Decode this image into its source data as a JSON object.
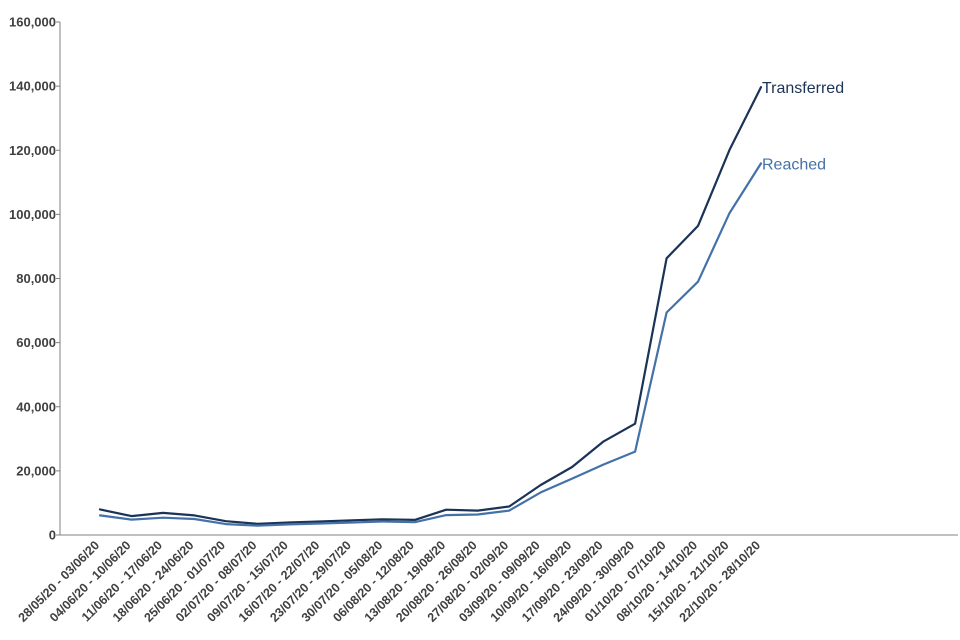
{
  "chart_data": {
    "type": "line",
    "categories": [
      "28/05/20 - 03/06/20",
      "04/06/20 - 10/06/20",
      "11/06/20 - 17/06/20",
      "18/06/20 - 24/06/20",
      "25/06/20 - 01/07/20",
      "02/07/20 - 08/07/20",
      "09/07/20 - 15/07/20",
      "16/07/20 - 22/07/20",
      "23/07/20 - 29/07/20",
      "30/07/20 - 05/08/20",
      "06/08/20 - 12/08/20",
      "13/08/20 - 19/08/20",
      "20/08/20 - 26/08/20",
      "27/08/20 - 02/09/20",
      "03/09/20 - 09/09/20",
      "10/09/20 - 16/09/20",
      "17/09/20 - 23/09/20",
      "24/09/20 - 30/09/20",
      "01/10/20 - 07/10/20",
      "08/10/20 - 14/10/20",
      "15/10/20 - 21/10/20",
      "22/10/20 - 28/10/20"
    ],
    "series": [
      {
        "name": "Transferred",
        "color": "#1a3356",
        "values": [
          8000,
          5900,
          6900,
          6100,
          4300,
          3500,
          3900,
          4200,
          4600,
          4900,
          4700,
          7900,
          7600,
          8900,
          15600,
          21200,
          29200,
          34700,
          86300,
          96400,
          120100,
          139700
        ]
      },
      {
        "name": "Reached",
        "color": "#4472a8",
        "values": [
          6100,
          4800,
          5400,
          5000,
          3400,
          2900,
          3300,
          3600,
          3900,
          4200,
          4000,
          6200,
          6400,
          7600,
          13300,
          17600,
          22000,
          26000,
          69400,
          79000,
          100400,
          115900
        ]
      }
    ],
    "yticks": [
      "0",
      "20,000",
      "40,000",
      "60,000",
      "80,000",
      "100,000",
      "120,000",
      "140,000",
      "160,000"
    ],
    "ylim": [
      0,
      160000
    ],
    "grid": false,
    "legend": "end-of-line labels"
  }
}
